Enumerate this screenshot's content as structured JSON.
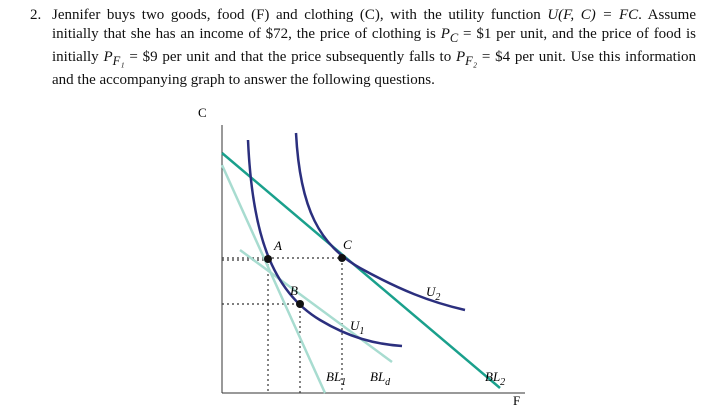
{
  "question": {
    "number": "2.",
    "segments": [
      {
        "t": "Jennifer buys two goods, food (F) and clothing (C), with the utility function "
      },
      {
        "m": "U(F, C) = FC"
      },
      {
        "t": ". Assume initially that she has an income of $72, the price of clothing is "
      },
      {
        "m": "P",
        "sub": "C"
      },
      {
        "t": " = $1 per unit, and the price of food is initially "
      },
      {
        "m": "P",
        "sub": "F₁"
      },
      {
        "t": " = $9 per unit and that the price subsequently falls to "
      },
      {
        "m": "P",
        "sub": "F₂"
      },
      {
        "t": " = $4 per unit. Use this information and the accompanying graph to answer the following questions."
      }
    ]
  },
  "diagram": {
    "y_axis_label": "C",
    "x_axis_label": "F",
    "points": [
      {
        "label": "A"
      },
      {
        "label": "B"
      },
      {
        "label": "C"
      }
    ],
    "curves": [
      {
        "base": "U",
        "sub": "1"
      },
      {
        "base": "U",
        "sub": "2"
      }
    ],
    "budget_lines": [
      {
        "base": "BL",
        "sub": "1"
      },
      {
        "base": "BL",
        "sub": "d"
      },
      {
        "base": "BL",
        "sub": "2"
      }
    ]
  }
}
